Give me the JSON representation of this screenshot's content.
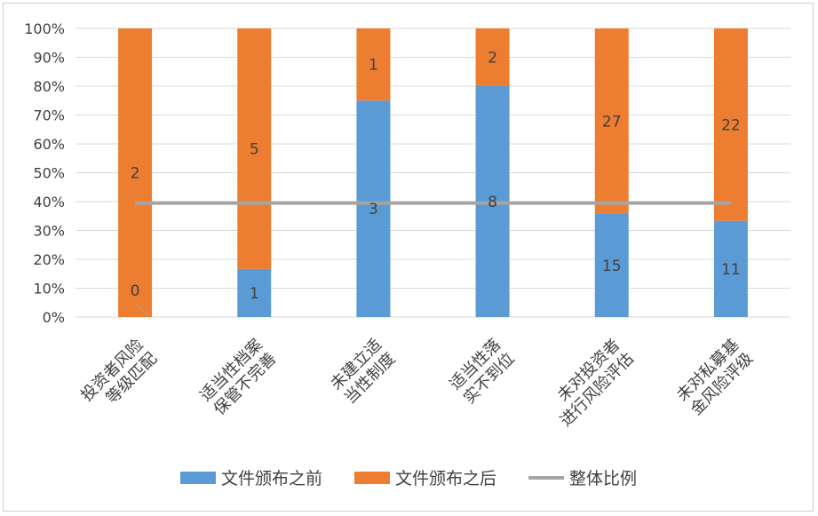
{
  "chart_data": {
    "type": "bar",
    "stacked": true,
    "normalized_100_percent": true,
    "categories": [
      "投资者风险\n等级匹配",
      "适当性档案\n保管不完善",
      "未建立适\n当性制度",
      "适当性落\n实不到位",
      "未对投资者\n进行风险评估",
      "未对私募基\n金风险评级"
    ],
    "series": [
      {
        "name": "文件颁布之前",
        "values": [
          0,
          1,
          3,
          8,
          15,
          11
        ],
        "color": "#5B9BD5"
      },
      {
        "name": "文件颁布之后",
        "values": [
          2,
          5,
          1,
          2,
          27,
          22
        ],
        "color": "#ED7D31"
      }
    ],
    "line": {
      "name": "整体比例",
      "value_percent": 39.5,
      "color": "#A5A5A5"
    },
    "y_ticks": [
      "0%",
      "10%",
      "20%",
      "30%",
      "40%",
      "50%",
      "60%",
      "70%",
      "80%",
      "90%",
      "100%"
    ],
    "ylim": [
      0,
      100
    ],
    "grid": "horizontal",
    "legend_position": "bottom"
  }
}
